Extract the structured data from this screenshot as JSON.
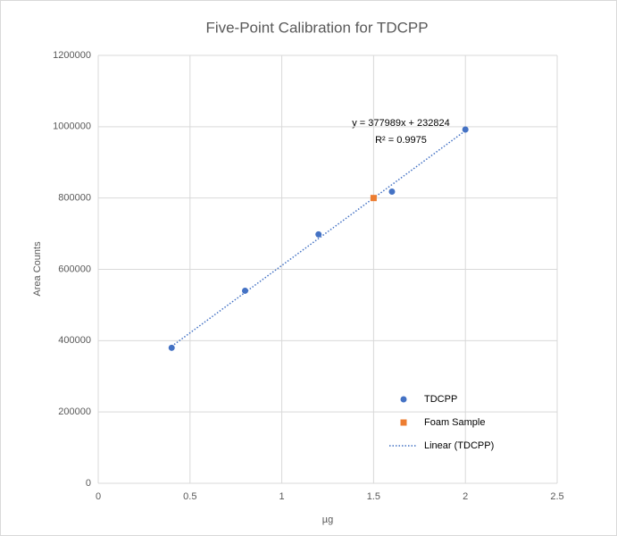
{
  "chart_data": {
    "type": "scatter",
    "title": "Five-Point Calibration for TDCPP",
    "x_label": "µg",
    "y_label": "Area Counts",
    "xlim": [
      0,
      2.5
    ],
    "xticks": [
      0,
      0.5,
      1,
      1.5,
      2,
      2.5
    ],
    "ylim": [
      0,
      1200000
    ],
    "yticks": [
      0,
      200000,
      400000,
      600000,
      800000,
      1000000,
      1200000
    ],
    "grid": true,
    "legend": "lower right",
    "series": [
      {
        "name": "TDCPP",
        "color": "#4472c4",
        "marker": "circle",
        "x": [
          0.4,
          0.8,
          1.2,
          1.6,
          2.0
        ],
        "values": [
          380000,
          540000,
          698000,
          818000,
          992000
        ]
      },
      {
        "name": "Foam Sample",
        "color": "#ed7d31",
        "marker": "square",
        "x": [
          1.5
        ],
        "values": [
          800000
        ]
      },
      {
        "name": "Linear (TDCPP)",
        "color": "#4472c4",
        "marker": "dotted-line",
        "x": [
          0.4,
          2.0
        ],
        "values": [
          384020,
          988802
        ]
      }
    ],
    "annotations": [
      "y = 377989x + 232824",
      "R² = 0.9975"
    ]
  }
}
